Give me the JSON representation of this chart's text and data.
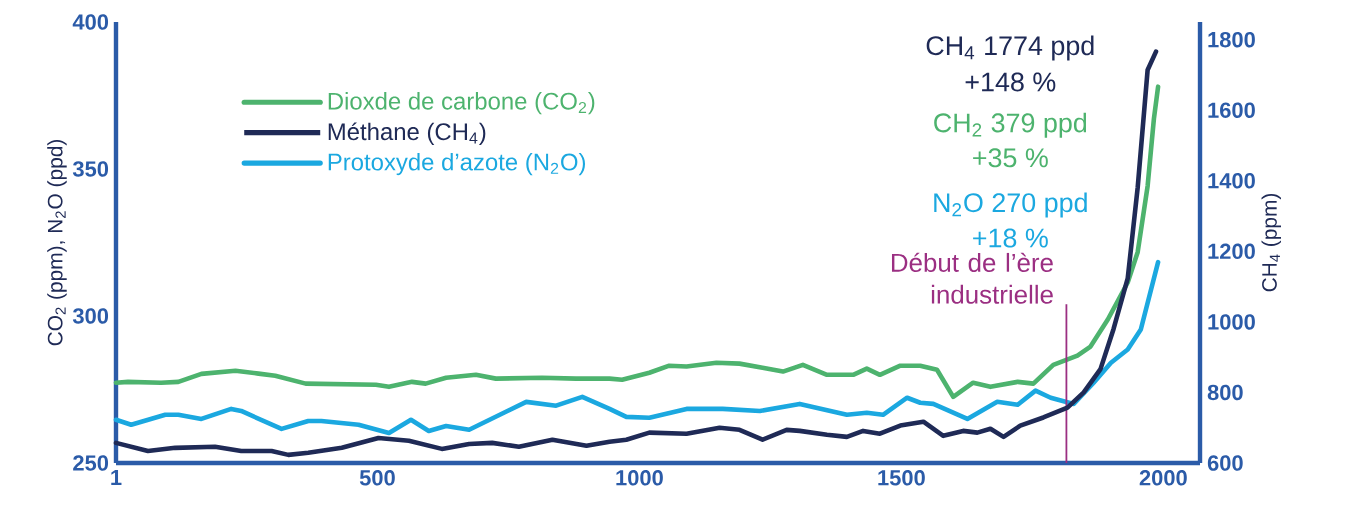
{
  "chart_data": {
    "type": "line",
    "ylabel": "CO$_{2}$ (ppm), N$_{2}$O (ppd)",
    "y2label": "CH$_{4}$ (ppm)",
    "xlim": [
      1,
      2070
    ],
    "xticks": [
      1,
      500,
      1000,
      1500,
      2000
    ],
    "ylim": [
      250,
      400
    ],
    "yticks": [
      250,
      300,
      350,
      400
    ],
    "y2lim": [
      600,
      1850
    ],
    "y2ticks": [
      600,
      800,
      1000,
      1200,
      1400,
      1600,
      1800
    ],
    "legend": "top left",
    "series": [
      {
        "name": "Dioxde de carbone (CO$_{2}$)",
        "color": "#4db36e",
        "x": [
          1,
          24,
          87,
          120,
          164,
          229,
          273,
          305,
          363,
          497,
          522,
          566,
          592,
          631,
          688,
          726,
          814,
          879,
          943,
          967,
          1019,
          1057,
          1090,
          1147,
          1191,
          1235,
          1274,
          1312,
          1358,
          1408,
          1434,
          1459,
          1498,
          1536,
          1568,
          1599,
          1637,
          1670,
          1722,
          1752,
          1790,
          1836,
          1861,
          1894,
          1932,
          1951,
          1970,
          1982,
          1990
        ],
        "values": [
          277.3,
          277.6,
          277.3,
          277.6,
          280.3,
          281.4,
          280.4,
          279.7,
          277.0,
          276.6,
          275.9,
          277.6,
          277.0,
          279.0,
          280.0,
          278.7,
          279.0,
          278.7,
          278.7,
          278.3,
          280.7,
          283.1,
          282.8,
          284.1,
          283.8,
          282.4,
          281.1,
          283.4,
          280.0,
          280.0,
          282.1,
          280.0,
          283.1,
          283.1,
          281.7,
          272.5,
          277.3,
          275.9,
          277.6,
          277.0,
          283.4,
          286.5,
          289.6,
          298.8,
          311.4,
          321.7,
          344.2,
          367.1,
          378.0
        ]
      },
      {
        "name": "Méthane (CH$_{4}$)",
        "color": "#1f2a56",
        "axis": "y2",
        "x": [
          1,
          62,
          114,
          190,
          240,
          298,
          330,
          368,
          432,
          502,
          560,
          623,
          675,
          719,
          770,
          834,
          899,
          943,
          975,
          1019,
          1090,
          1153,
          1191,
          1235,
          1281,
          1306,
          1358,
          1396,
          1427,
          1459,
          1498,
          1542,
          1580,
          1618,
          1645,
          1670,
          1695,
          1727,
          1771,
          1817,
          1848,
          1880,
          1905,
          1932,
          1951,
          1970,
          1986
        ],
        "values": [
          657,
          634,
          643,
          646,
          634,
          634,
          623,
          629,
          643,
          671,
          663,
          640,
          654,
          657,
          646,
          666,
          649,
          660,
          666,
          686,
          683,
          700,
          694,
          666,
          694,
          691,
          680,
          674,
          691,
          683,
          706,
          717,
          677,
          691,
          686,
          697,
          674,
          706,
          729,
          757,
          800,
          866,
          980,
          1123,
          1380,
          1714,
          1766
        ]
      },
      {
        "name": "Protoxyde d’azote (N$_{2}$O)",
        "color": "#1ba8e0",
        "x": [
          1,
          30,
          95,
          120,
          164,
          221,
          240,
          317,
          368,
          393,
          464,
          522,
          564,
          598,
          631,
          675,
          784,
          841,
          891,
          943,
          975,
          1019,
          1090,
          1159,
          1230,
          1306,
          1396,
          1434,
          1465,
          1511,
          1536,
          1561,
          1626,
          1683,
          1722,
          1756,
          1785,
          1829,
          1867,
          1900,
          1932,
          1957,
          1990
        ],
        "values": [
          264.7,
          263.0,
          266.4,
          266.4,
          265.0,
          268.4,
          267.7,
          261.6,
          264.3,
          264.3,
          263.0,
          260.2,
          264.7,
          260.9,
          262.6,
          261.3,
          270.8,
          269.5,
          272.5,
          268.4,
          265.7,
          265.4,
          268.4,
          268.4,
          267.7,
          270.1,
          266.4,
          267.1,
          266.4,
          272.2,
          270.5,
          270.1,
          265.0,
          270.8,
          269.8,
          274.6,
          272.2,
          270.1,
          277.3,
          284.1,
          288.6,
          295.4,
          318.3
        ]
      }
    ],
    "ref_lines": [
      {
        "axis": "x",
        "value": 1815,
        "label": "Début de l’ère industrielle",
        "color": "#9b2f82"
      }
    ],
    "annotations": [
      "CH$_{4}$ 1774 ppd",
      "+148 %",
      "CH$_{2}$ 379 ppd",
      "+35 %",
      "N$_{2}$O 270 ppd",
      "+18 %"
    ]
  }
}
